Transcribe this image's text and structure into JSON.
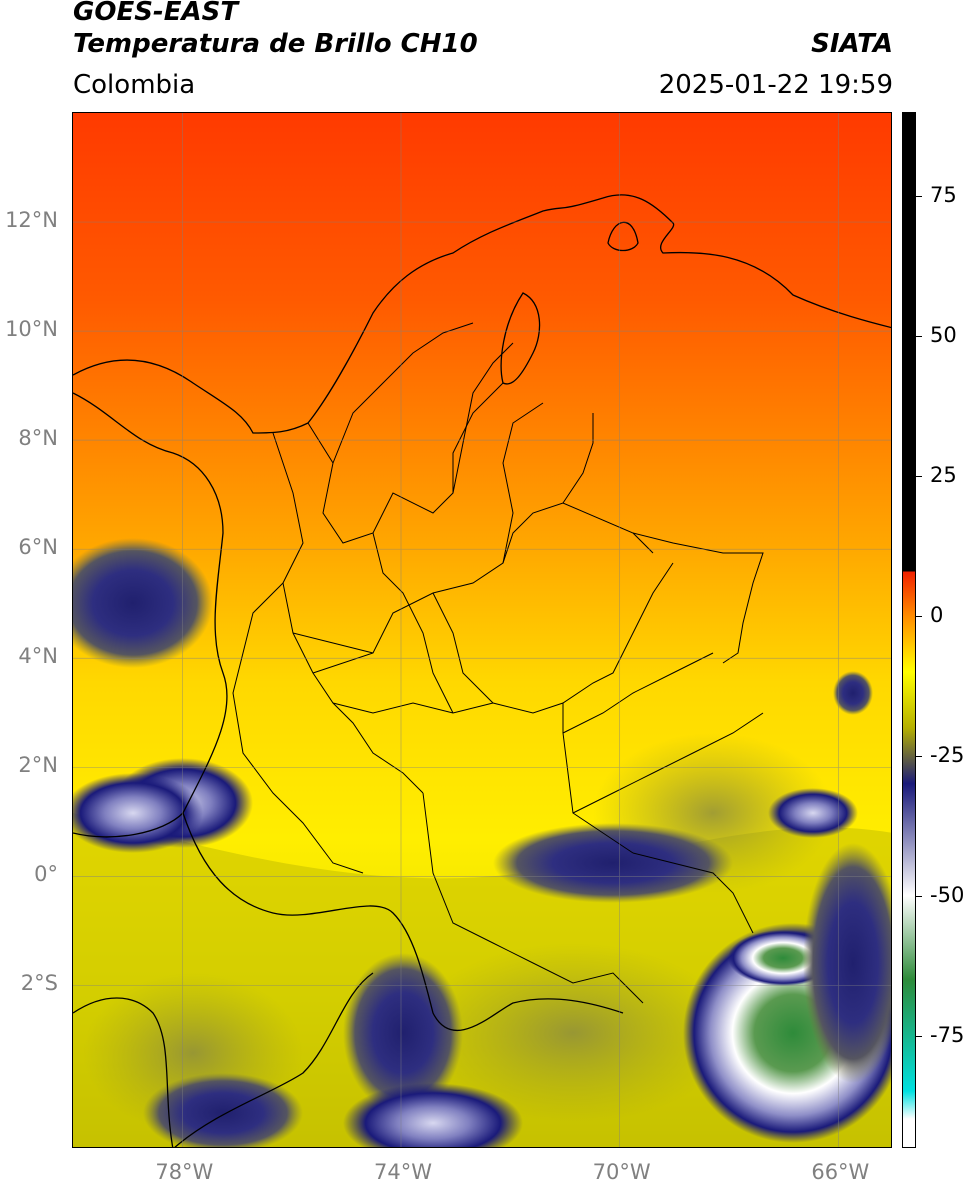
{
  "header": {
    "satellite": "GOES-EAST",
    "product": "Temperatura de Brillo CH10",
    "agency": "SIATA",
    "region": "Colombia",
    "timestamp": "2025-01-22 19:59"
  },
  "map": {
    "lat_labels": [
      "12°N",
      "10°N",
      "8°N",
      "6°N",
      "4°N",
      "2°N",
      "0°",
      "2°S"
    ],
    "lon_labels": [
      "78°W",
      "74°W",
      "70°W",
      "66°W"
    ],
    "lon_range": [
      -80.0,
      -65.0
    ],
    "lat_range": [
      -5.0,
      14.0
    ]
  },
  "colorbar": {
    "ticks": [
      "75",
      "50",
      "25",
      "0",
      "-25",
      "-50",
      "-75"
    ],
    "tick_values": [
      75,
      50,
      25,
      0,
      -25,
      -50,
      -75
    ],
    "range": [
      -95,
      90
    ],
    "colors": {
      "black": "#000000",
      "red": "#f02000",
      "orange": "#ff8c00",
      "yellow": "#ffff00",
      "olive": "#b5b000",
      "navy": "#1a1a7a",
      "white": "#ffffff",
      "green": "#2e8b3a",
      "cyan": "#00e0e0"
    }
  }
}
